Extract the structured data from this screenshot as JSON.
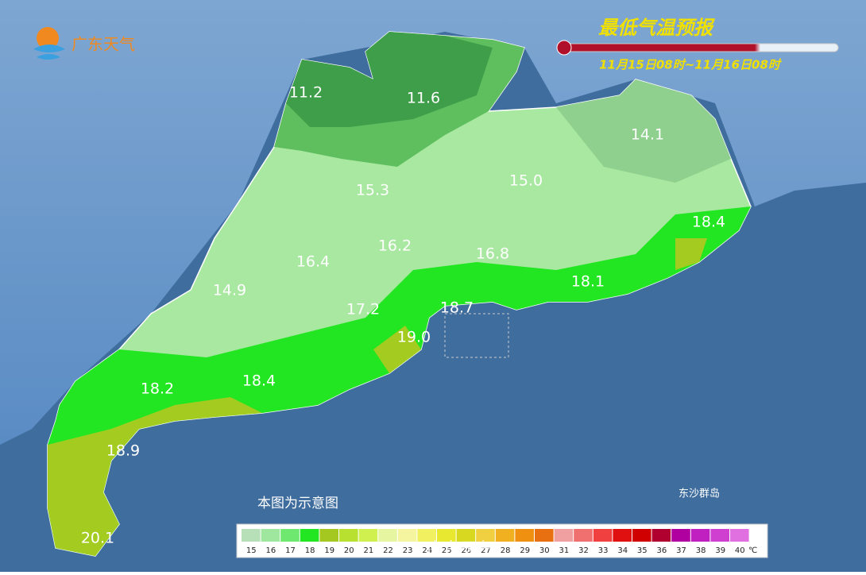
{
  "logo": "广东天气",
  "title": "最低气温预报",
  "subtitle": "11月15日08时~11月16日08时",
  "temperature_labels": [
    "11.2",
    "11.6",
    "14.1",
    "15.3",
    "15.0",
    "18.4",
    "16.2",
    "16.4",
    "16.8",
    "14.9",
    "18.1",
    "17.2",
    "18.7",
    "19.0",
    "18.2",
    "18.4",
    "18.9",
    "20.1"
  ],
  "island_label": "东沙群岛",
  "note": "本图为示意图",
  "legend": {
    "unit": "℃",
    "items": [
      {
        "value": 15,
        "color": "#b8e0b8"
      },
      {
        "value": 16,
        "color": "#9fe69f"
      },
      {
        "value": 17,
        "color": "#6fe86f"
      },
      {
        "value": 18,
        "color": "#22e622"
      },
      {
        "value": 19,
        "color": "#a4c820"
      },
      {
        "value": 20,
        "color": "#b8e030"
      },
      {
        "value": 21,
        "color": "#d0f050"
      },
      {
        "value": 22,
        "color": "#e6f5a0"
      },
      {
        "value": 23,
        "color": "#f5f5a0"
      },
      {
        "value": 24,
        "color": "#f0f060"
      },
      {
        "value": 25,
        "color": "#e8e830"
      },
      {
        "value": 26,
        "color": "#d8d820"
      },
      {
        "value": 27,
        "color": "#f0d040"
      },
      {
        "value": 28,
        "color": "#f0b020"
      },
      {
        "value": 29,
        "color": "#f09010"
      },
      {
        "value": 30,
        "color": "#e87010"
      },
      {
        "value": 31,
        "color": "#f0a0a0"
      },
      {
        "value": 32,
        "color": "#f07070"
      },
      {
        "value": 33,
        "color": "#f04040"
      },
      {
        "value": 34,
        "color": "#e01010"
      },
      {
        "value": 35,
        "color": "#d00000"
      },
      {
        "value": 36,
        "color": "#b00030"
      },
      {
        "value": 37,
        "color": "#b000a0"
      },
      {
        "value": 38,
        "color": "#c020c0"
      },
      {
        "value": 39,
        "color": "#d040d0"
      },
      {
        "value": 40,
        "color": "#e070e0"
      }
    ]
  },
  "watermark": "广东天气"
}
